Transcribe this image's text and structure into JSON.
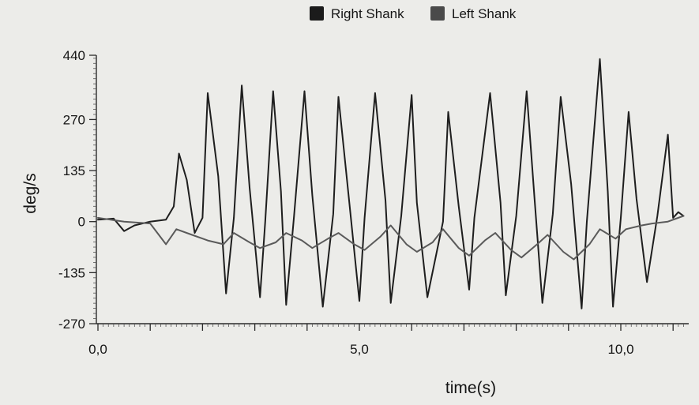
{
  "chart_data": {
    "type": "line",
    "title": "",
    "xlabel": "time(s)",
    "ylabel": "deg/s",
    "xlim": [
      0,
      11.2
    ],
    "ylim": [
      -270,
      440
    ],
    "x_ticks": [
      0,
      5,
      10
    ],
    "x_tick_labels": [
      "0,0",
      "5,0",
      "10,0"
    ],
    "y_ticks": [
      440,
      270,
      135,
      0,
      -135,
      -270
    ],
    "y_tick_labels": [
      "440",
      "270",
      "135",
      "0",
      "-135",
      "-270"
    ],
    "grid": false,
    "legend_position": "top-center",
    "series": [
      {
        "name": "Right Shank",
        "color": "#1e1e1e",
        "x": [
          0,
          0.3,
          0.5,
          0.7,
          1.0,
          1.3,
          1.45,
          1.55,
          1.7,
          1.85,
          2.0,
          2.1,
          2.3,
          2.45,
          2.6,
          2.75,
          2.9,
          3.1,
          3.2,
          3.35,
          3.5,
          3.6,
          3.75,
          3.95,
          4.1,
          4.3,
          4.5,
          4.6,
          4.8,
          5.0,
          5.1,
          5.3,
          5.5,
          5.6,
          5.8,
          6.0,
          6.1,
          6.3,
          6.6,
          6.7,
          6.9,
          7.1,
          7.2,
          7.5,
          7.7,
          7.8,
          8.0,
          8.2,
          8.35,
          8.5,
          8.7,
          8.85,
          9.05,
          9.25,
          9.35,
          9.6,
          9.75,
          9.85,
          10.0,
          10.15,
          10.3,
          10.5,
          10.7,
          10.9,
          11.0,
          11.1,
          11.2
        ],
        "values": [
          5,
          8,
          -25,
          -10,
          0,
          5,
          40,
          180,
          110,
          -30,
          10,
          340,
          120,
          -190,
          10,
          360,
          90,
          -200,
          0,
          345,
          80,
          -220,
          15,
          345,
          70,
          -225,
          20,
          330,
          60,
          -210,
          10,
          340,
          55,
          -215,
          15,
          335,
          50,
          -200,
          0,
          290,
          40,
          -180,
          10,
          340,
          50,
          -195,
          15,
          345,
          60,
          -215,
          20,
          330,
          100,
          -230,
          0,
          430,
          80,
          -225,
          10,
          290,
          60,
          -160,
          15,
          230,
          10,
          25,
          15
        ]
      },
      {
        "name": "Left Shank",
        "color": "#5a5a5a",
        "x": [
          0,
          0.5,
          1.0,
          1.3,
          1.5,
          1.8,
          2.1,
          2.4,
          2.6,
          2.9,
          3.1,
          3.4,
          3.6,
          3.9,
          4.1,
          4.4,
          4.6,
          4.9,
          5.1,
          5.4,
          5.6,
          5.9,
          6.1,
          6.4,
          6.6,
          6.9,
          7.1,
          7.4,
          7.6,
          7.9,
          8.1,
          8.4,
          8.6,
          8.9,
          9.1,
          9.4,
          9.6,
          9.9,
          10.1,
          10.4,
          10.6,
          10.9,
          11.2
        ],
        "values": [
          10,
          0,
          -5,
          -60,
          -20,
          -35,
          -50,
          -60,
          -30,
          -55,
          -70,
          -55,
          -30,
          -50,
          -70,
          -45,
          -30,
          -60,
          -75,
          -40,
          -10,
          -60,
          -80,
          -55,
          -20,
          -70,
          -90,
          -50,
          -30,
          -75,
          -95,
          -60,
          -35,
          -80,
          -100,
          -60,
          -20,
          -45,
          -20,
          -10,
          -5,
          0,
          15
        ]
      }
    ]
  }
}
